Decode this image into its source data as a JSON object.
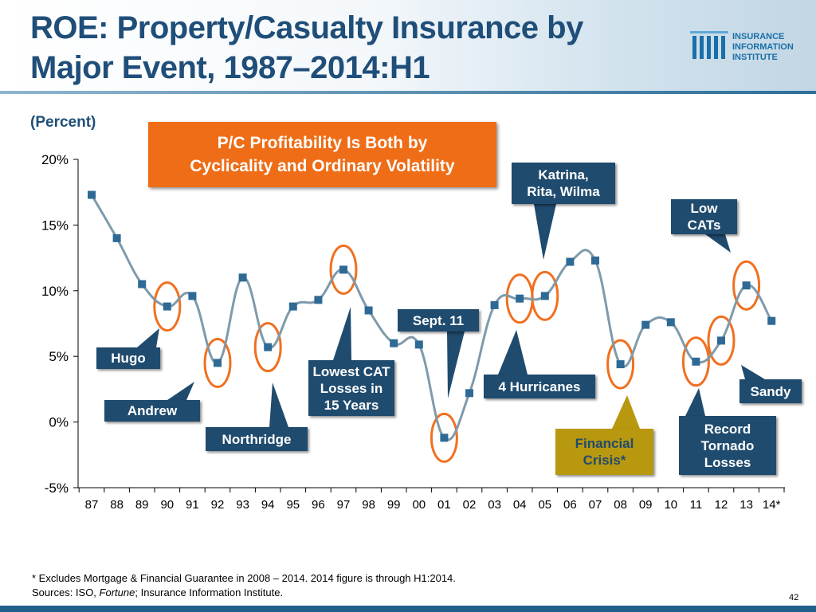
{
  "header": {
    "title_line1": "ROE: Property/Casualty Insurance by",
    "title_line2": "Major Event, 1987–2014:H1"
  },
  "logo": {
    "line1": "INSURANCE",
    "line2": "INFORMATION",
    "line3": "INSTITUTE",
    "icon": "iii-logo-icon"
  },
  "unit_label": "(Percent)",
  "banner": {
    "line1": "P/C Profitability Is Both by",
    "line2": "Cyclicality and Ordinary Volatility"
  },
  "chart_data": {
    "type": "line",
    "title": "ROE: Property/Casualty Insurance by Major Event, 1987–2014:H1",
    "ylabel": "(Percent)",
    "ylim": [
      -5,
      20
    ],
    "yticks": [
      -5,
      0,
      5,
      10,
      15,
      20
    ],
    "ytick_labels": [
      "-5%",
      "0%",
      "5%",
      "10%",
      "15%",
      "20%"
    ],
    "categories": [
      "87",
      "88",
      "89",
      "90",
      "91",
      "92",
      "93",
      "94",
      "95",
      "96",
      "97",
      "98",
      "99",
      "00",
      "01",
      "02",
      "03",
      "04",
      "05",
      "06",
      "07",
      "08",
      "09",
      "10",
      "11",
      "12",
      "13",
      "14*"
    ],
    "values": [
      17.3,
      14.0,
      10.5,
      8.8,
      9.6,
      4.5,
      11.0,
      5.7,
      8.8,
      9.3,
      11.6,
      8.5,
      6.0,
      5.9,
      -1.2,
      2.2,
      8.9,
      9.4,
      9.6,
      12.2,
      12.3,
      4.4,
      7.4,
      7.6,
      4.6,
      6.2,
      10.4,
      7.7
    ],
    "highlighted_years": [
      "90",
      "92",
      "94",
      "97",
      "01",
      "04",
      "05",
      "08",
      "11",
      "12",
      "13"
    ],
    "grid": false,
    "legend": "none"
  },
  "callouts": {
    "hugo": "Hugo",
    "andrew": "Andrew",
    "northridge": "Northridge",
    "lowest_cat_line1": "Lowest CAT",
    "lowest_cat_line2": "Losses in",
    "lowest_cat_line3": "15 Years",
    "sept11": "Sept. 11",
    "four_hurricanes": "4 Hurricanes",
    "katrina_line1": "Katrina,",
    "katrina_line2": "Rita, Wilma",
    "financial_line1": "Financial",
    "financial_line2": "Crisis*",
    "low_cats_line1": "Low",
    "low_cats_line2": "CATs",
    "record_line1": "Record",
    "record_line2": "Tornado",
    "record_line3": "Losses",
    "sandy": "Sandy"
  },
  "footnote": {
    "line1": "* Excludes Mortgage & Financial Guarantee in 2008 – 2014.  2014 figure is through H1:2014.",
    "sources_prefix": "Sources: ISO, ",
    "sources_italic": "Fortune",
    "sources_suffix": "; Insurance Information Institute."
  },
  "page_number": "42",
  "colors": {
    "title": "#1f4e79",
    "line": "#7f9aab",
    "marker": "#2e6a95",
    "circle": "#f07020",
    "callout": "#1f4b6e",
    "callout_gold": "#b8980e",
    "banner": "#ee6d16"
  }
}
